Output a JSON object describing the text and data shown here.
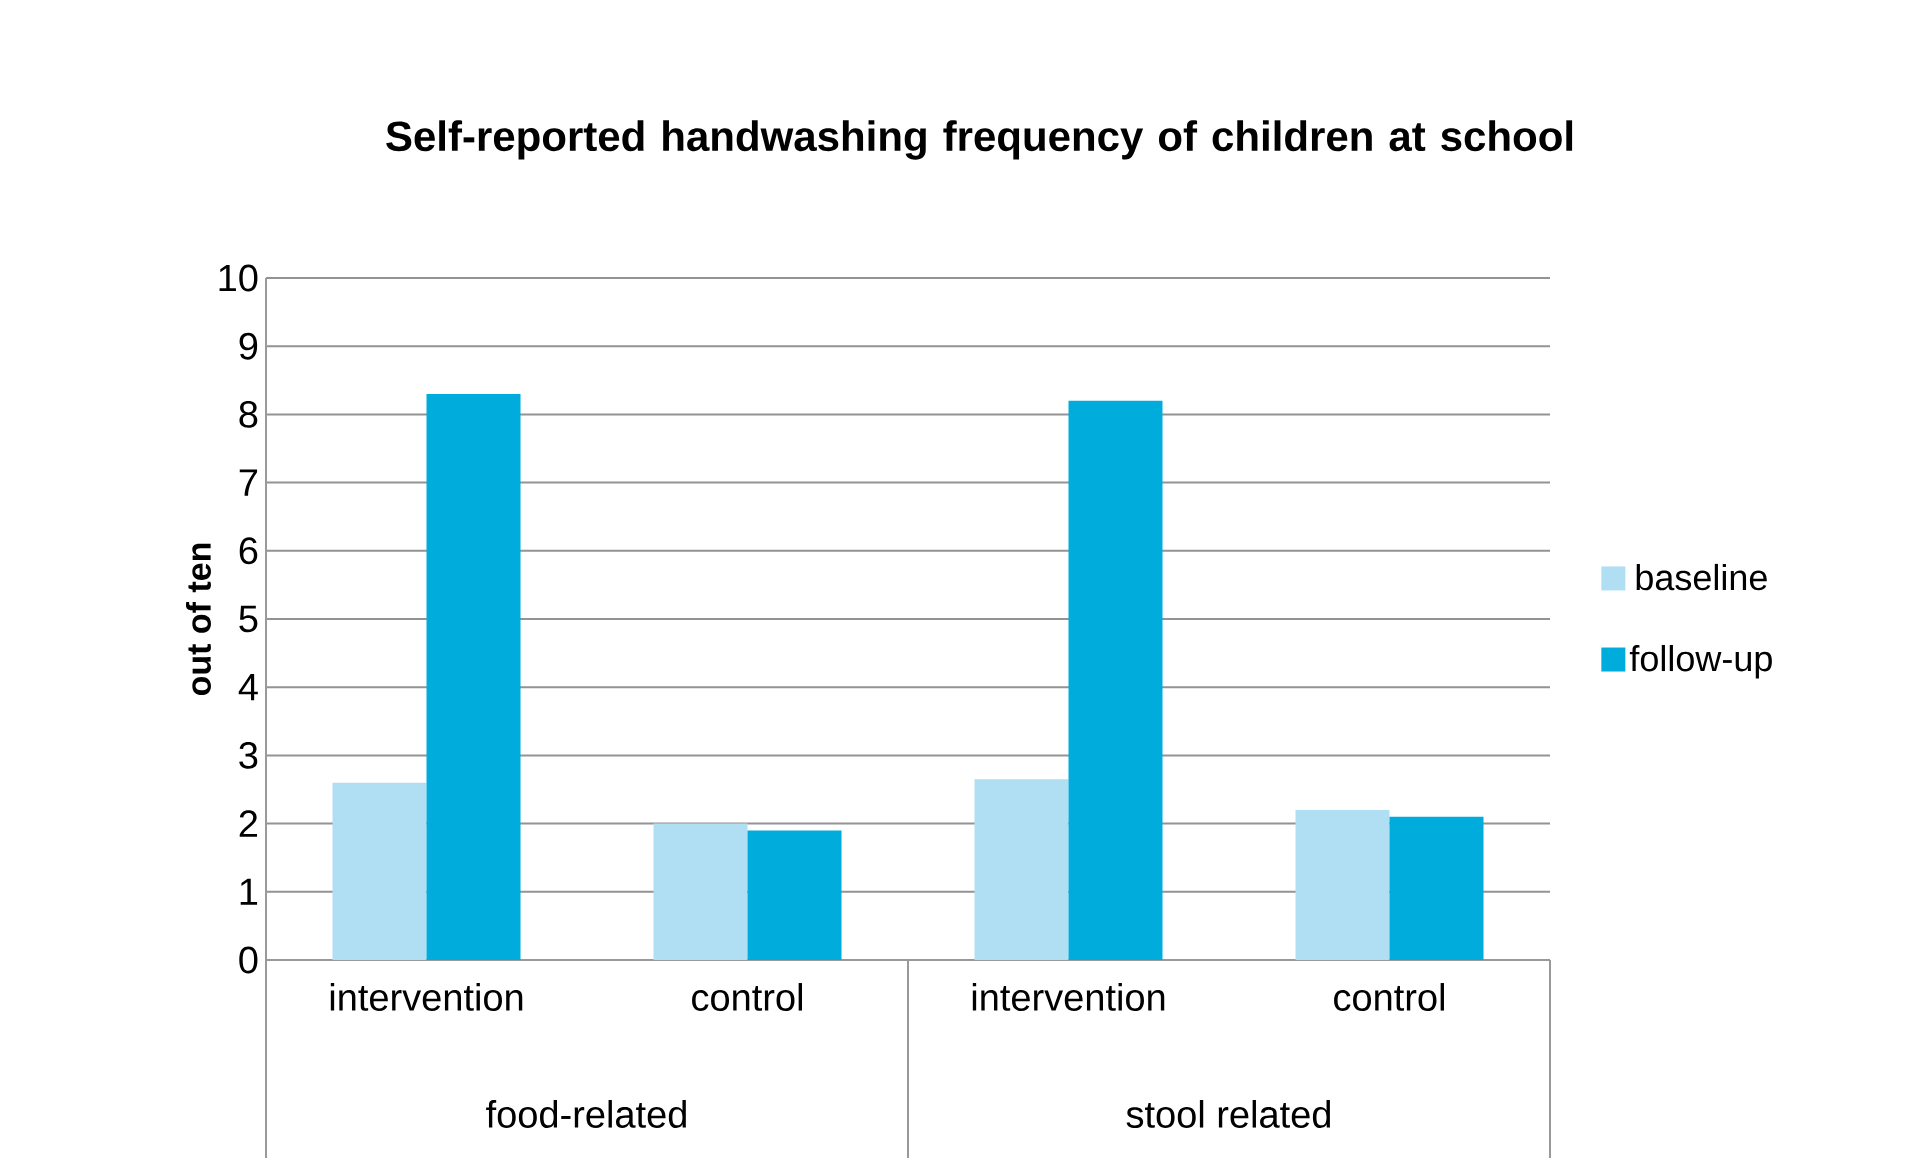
{
  "chart_data": {
    "type": "bar",
    "title": "Self-reported handwashing frequency of children at school",
    "ylabel": "out of ten",
    "categories": [
      "intervention",
      "control",
      "intervention",
      "control"
    ],
    "series": [
      {
        "name": "baseline",
        "color": "#b0dff4",
        "values": [
          2.6,
          2.0,
          2.65,
          2.2
        ]
      },
      {
        "name": "follow-up",
        "color": "#00acdc",
        "values": [
          8.3,
          1.9,
          8.2,
          2.1
        ]
      }
    ],
    "annotations": [
      "food-related",
      "stool related"
    ],
    "ylim": [
      0,
      10
    ],
    "yticks": [
      0,
      1,
      2,
      3,
      4,
      5,
      6,
      7,
      8,
      9,
      10
    ],
    "grid": "y",
    "legend": "right"
  }
}
